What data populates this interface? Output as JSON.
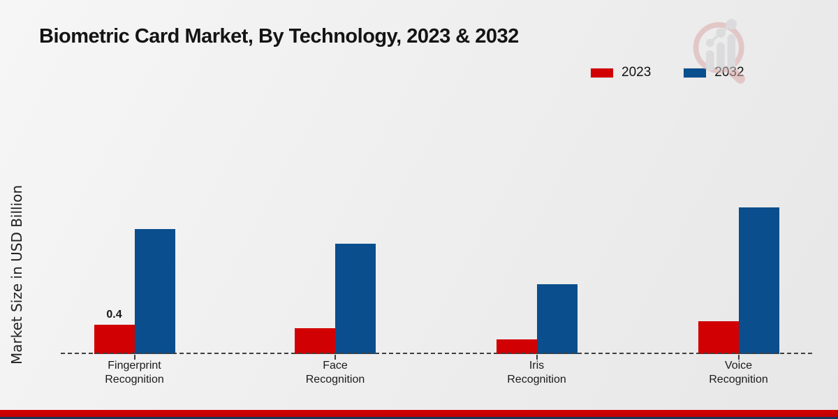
{
  "page": {
    "title": "Biometric Card Market, By Technology, 2023 & 2032",
    "y_axis_label": "Market Size in USD Billion"
  },
  "legend": [
    {
      "label": "2023",
      "color": "#d10002"
    },
    {
      "label": "2032",
      "color": "#0a4e8d"
    }
  ],
  "chart_data": {
    "type": "bar",
    "title": "Biometric Card Market, By Technology, 2023 & 2032",
    "xlabel": "",
    "ylabel": "Market Size in USD Billion",
    "categories": [
      "Fingerprint Recognition",
      "Face Recognition",
      "Iris Recognition",
      "Voice Recognition"
    ],
    "series": [
      {
        "name": "2023",
        "color": "#d10002",
        "values": [
          0.4,
          0.35,
          0.2,
          0.45
        ],
        "data_labels": [
          "0.4",
          "",
          "",
          ""
        ]
      },
      {
        "name": "2032",
        "color": "#0a4e8d",
        "values": [
          1.7,
          1.5,
          0.95,
          2.0
        ],
        "data_labels": [
          "",
          "",
          "",
          ""
        ]
      }
    ],
    "ylim": [
      0,
      2.2
    ],
    "grid": false,
    "y_axis_ticks_visible": false,
    "baseline_style": "dashed",
    "legend_position": "top-right"
  },
  "footer": {
    "red_stripe_color": "#c40000",
    "navy_stripe_color": "#16365c"
  }
}
